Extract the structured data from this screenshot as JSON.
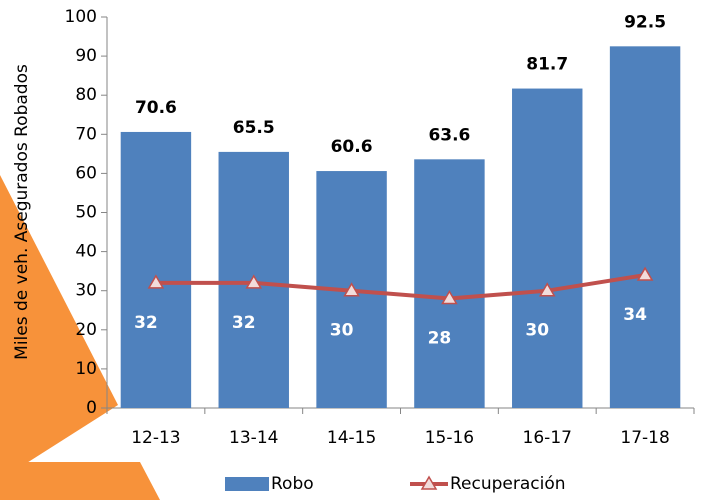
{
  "chart_data": {
    "type": "bar",
    "y_label": "Miles de veh. Asegurados Robados",
    "categories": [
      "12-13",
      "13-14",
      "14-15",
      "15-16",
      "16-17",
      "17-18"
    ],
    "series": [
      {
        "name": "Robo",
        "type": "bar",
        "color": "#4f81bd",
        "values": [
          70.6,
          65.5,
          60.6,
          63.6,
          81.7,
          92.5
        ]
      },
      {
        "name": "Recuperación",
        "type": "line",
        "color": "#c0504d",
        "values": [
          32,
          32,
          30,
          28,
          30,
          34
        ]
      }
    ],
    "ylim": [
      0,
      100
    ],
    "yticks": [
      0,
      10,
      20,
      30,
      40,
      50,
      60,
      70,
      80,
      90,
      100
    ],
    "grid": false,
    "legend": "bottom"
  }
}
